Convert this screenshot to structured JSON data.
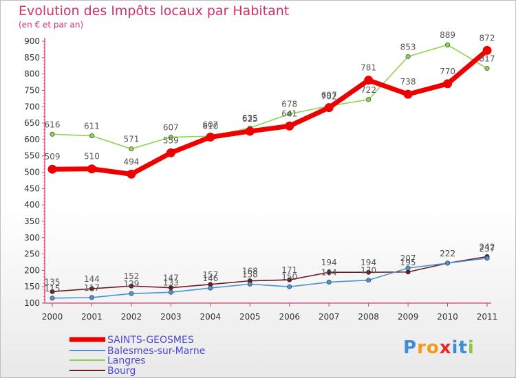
{
  "chart_data": {
    "type": "line",
    "title": "Evolution des Impôts locaux par Habitant",
    "subtitle": "(en € et par an)",
    "x": [
      "2000",
      "2001",
      "2002",
      "2003",
      "2004",
      "2005",
      "2006",
      "2007",
      "2008",
      "2009",
      "2010",
      "2011"
    ],
    "ylim": [
      100,
      900
    ],
    "yticks": [
      100,
      150,
      200,
      250,
      300,
      350,
      400,
      450,
      500,
      550,
      600,
      650,
      700,
      750,
      800,
      850,
      900
    ],
    "grid": false,
    "legend_position": "bottom-left",
    "series": [
      {
        "name": "SAINTS-GEOSMES",
        "color": "#ee0000",
        "values": [
          509,
          510,
          494,
          559,
          607,
          625,
          641,
          697,
          781,
          738,
          770,
          872
        ]
      },
      {
        "name": "Balesmes-sur-Marne",
        "color": "#4c93d0",
        "values": [
          115,
          117,
          129,
          133,
          146,
          158,
          150,
          164,
          170,
          207,
          222,
          237
        ]
      },
      {
        "name": "Langres",
        "color": "#8cd44f",
        "values": [
          616,
          611,
          571,
          607,
          610,
          635,
          678,
          702,
          722,
          853,
          889,
          817
        ]
      },
      {
        "name": "Bourg",
        "color": "#6b1b22",
        "values": [
          135,
          144,
          152,
          147,
          157,
          168,
          171,
          194,
          194,
          195,
          222,
          242
        ]
      }
    ],
    "data_labels": {
      "SAINTS-GEOSMES": [
        "509",
        "510",
        "494",
        "559",
        "607",
        "625",
        "641",
        "697",
        "781",
        "738",
        "770",
        "872"
      ],
      "Balesmes-sur-Marne": [
        "115",
        "117",
        "129",
        "133",
        "146",
        "158",
        "150",
        "164",
        "170",
        "207",
        "222",
        "237"
      ],
      "Langres": [
        "616",
        "611",
        "571",
        "607",
        "610",
        "635",
        "678",
        "702",
        "722",
        "853",
        "889",
        "817"
      ],
      "Bourg": [
        "135",
        "144",
        "152",
        "147",
        "157",
        "168",
        "171",
        "194",
        "194",
        "195",
        "222",
        "242"
      ]
    }
  },
  "logo": {
    "text": "Proxiti",
    "letters": [
      "P",
      "r",
      "o",
      "x",
      "i",
      "t",
      "i"
    ],
    "colors": [
      "#3d8ed8",
      "#f29a1a",
      "#f29a1a",
      "#e8272a",
      "#3d8ed8",
      "#3d8ed8",
      "#8cc63e"
    ]
  }
}
